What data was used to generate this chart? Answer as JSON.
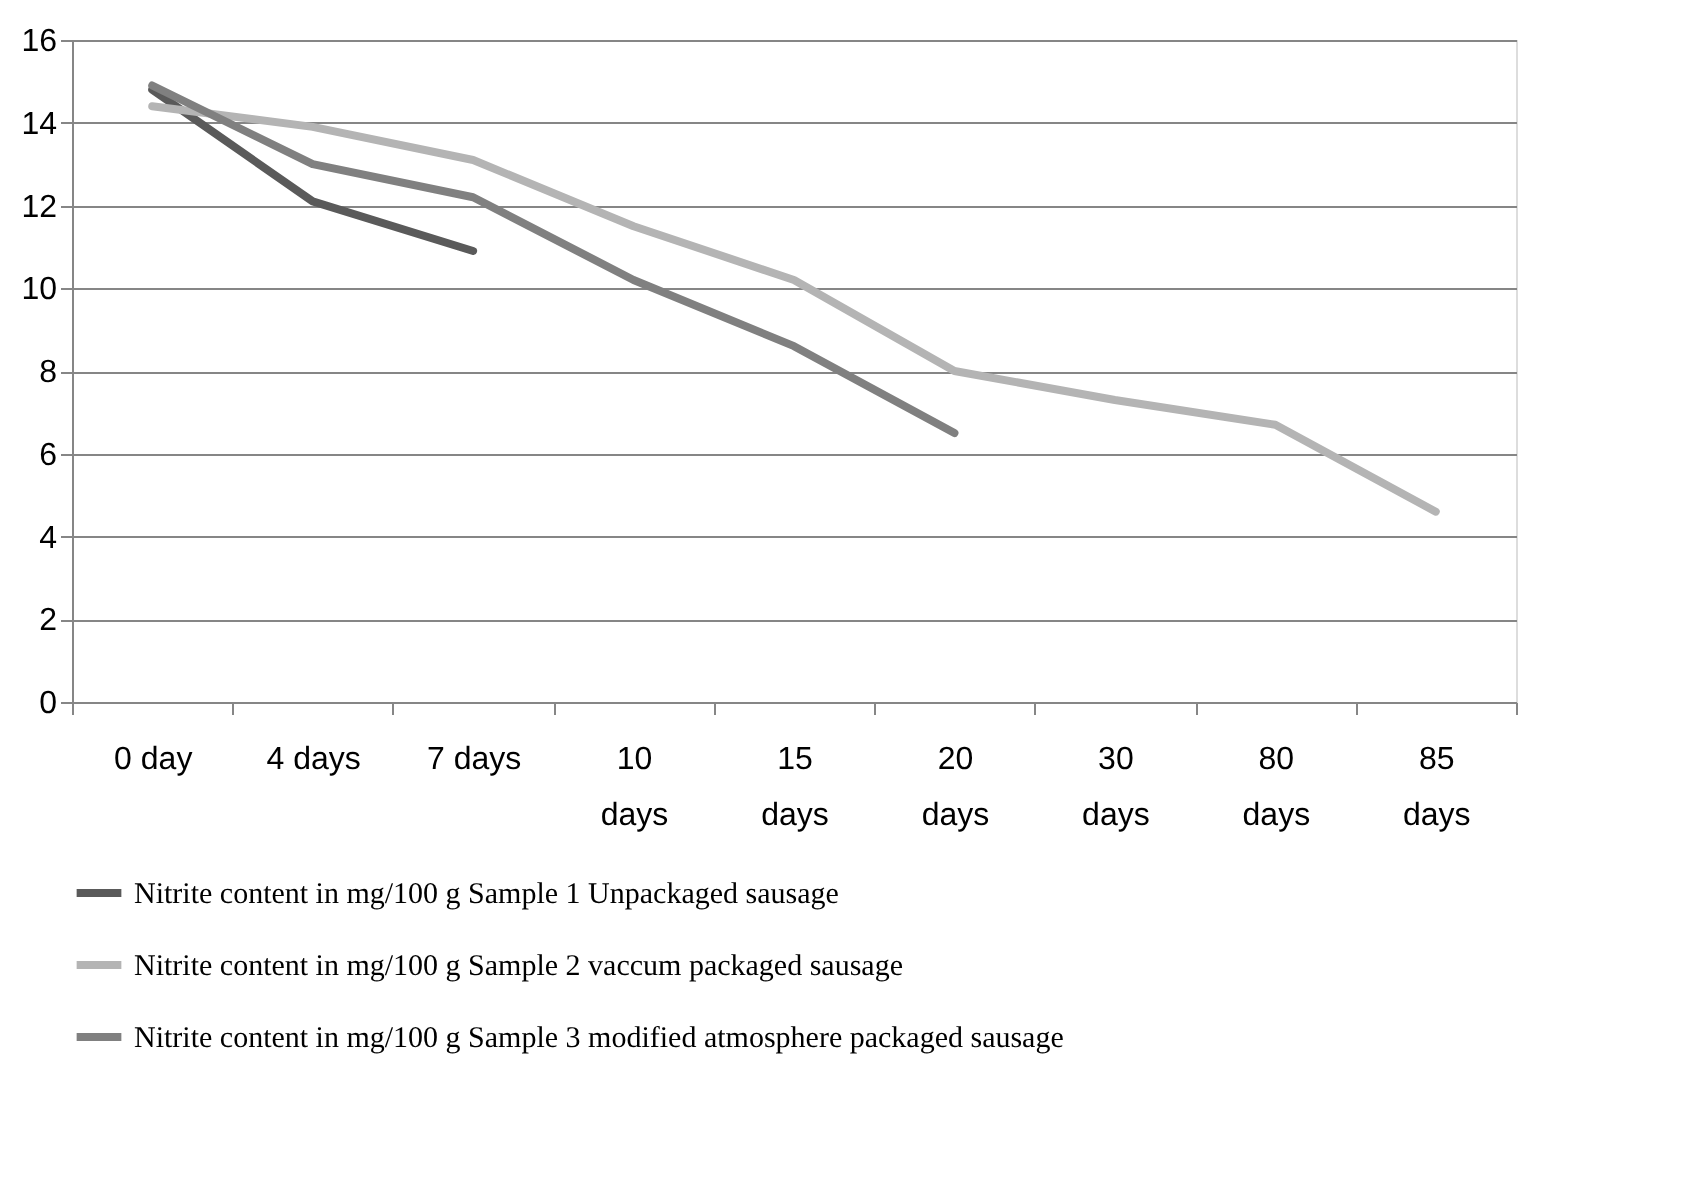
{
  "chart_data": {
    "type": "line",
    "categories": [
      "0 day",
      "4 days",
      "7 days",
      "10 days",
      "15 days",
      "20 days",
      "30 days",
      "80 days",
      "85 days"
    ],
    "series": [
      {
        "name": "Nitrite content in mg/100 g Sample 1 Unpackaged sausage",
        "color": "#5a5a5a",
        "values": [
          14.8,
          12.1,
          10.9,
          null,
          null,
          null,
          null,
          null,
          null
        ]
      },
      {
        "name": "Nitrite content in mg/100 g Sample 2 vaccum packaged sausage",
        "color": "#b4b4b4",
        "values": [
          14.4,
          13.9,
          13.1,
          11.5,
          10.2,
          8.0,
          7.3,
          6.7,
          4.6
        ]
      },
      {
        "name": "Nitrite content in mg/100 g Sample 3 modified atmosphere packaged sausage",
        "color": "#808080",
        "values": [
          14.9,
          13.0,
          12.2,
          10.2,
          8.6,
          6.5,
          null,
          null,
          null
        ]
      }
    ],
    "ylim": [
      0,
      16
    ],
    "yticks": [
      0,
      2,
      4,
      6,
      8,
      10,
      12,
      14,
      16
    ],
    "grid": "y",
    "legend": "bottom",
    "marker": "none",
    "line_style": "solid"
  }
}
